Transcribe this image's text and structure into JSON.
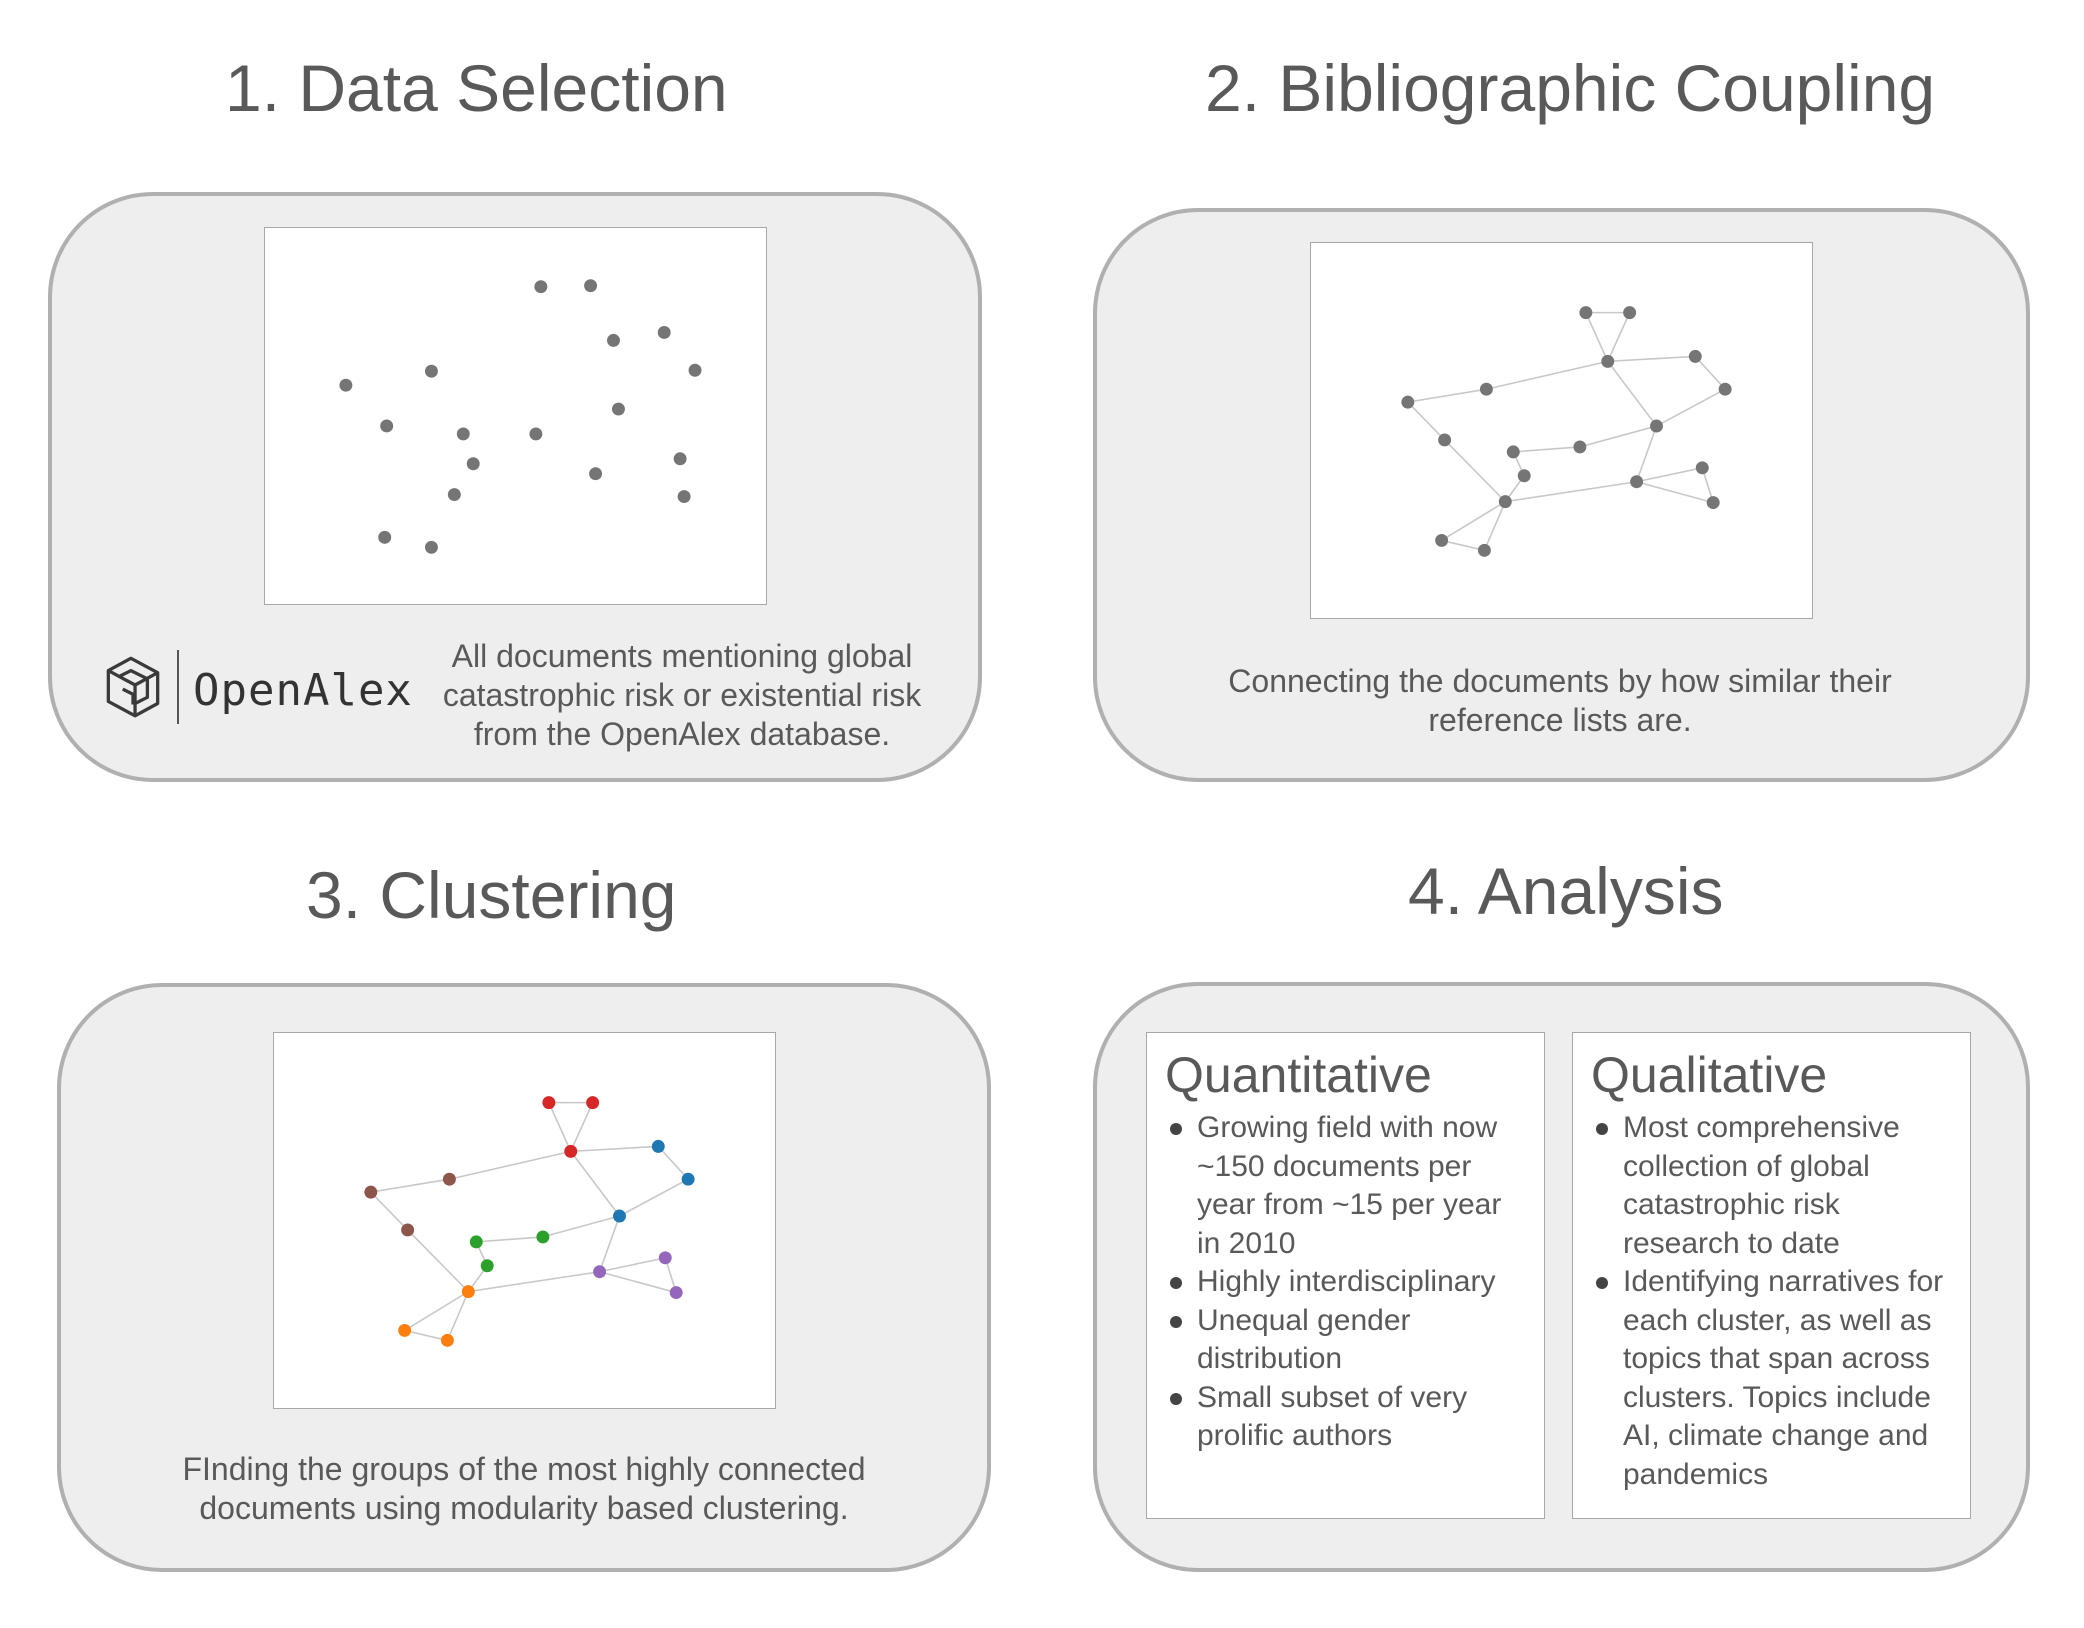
{
  "sections": {
    "data_selection": {
      "title": "1. Data Selection",
      "caption": "All documents mentioning global catastrophic risk or existential risk from the OpenAlex database.",
      "logo_text": "OpenAlex"
    },
    "bibliographic_coupling": {
      "title": "2. Bibliographic Coupling",
      "caption": "Connecting the documents by how similar their reference lists are."
    },
    "clustering": {
      "title": "3. Clustering",
      "caption": "FInding the groups of the most highly connected documents using modularity based clustering."
    },
    "analysis": {
      "title": "4. Analysis",
      "quantitative": {
        "heading": "Quantitative",
        "items": [
          "Growing field with now ~150 documents per year from ~15 per year in 2010",
          "Highly interdisciplinary",
          "Unequal gender distribution",
          "Small subset of very prolific authors"
        ]
      },
      "qualitative": {
        "heading": "Qualitative",
        "items": [
          "Most comprehensive collection of global catastrophic risk research to date",
          "Identifying narratives for each cluster, as well as topics that span across clusters. Topics include AI, climate change and pandemics"
        ]
      }
    }
  },
  "colors": {
    "node_gray": "#757575",
    "edge": "#c8c8c8",
    "cluster_red": "#d62728",
    "cluster_brown": "#8c564b",
    "cluster_blue": "#1f77b4",
    "cluster_green": "#2ca02c",
    "cluster_purple": "#9467bd",
    "cluster_orange": "#ff7f0e"
  }
}
